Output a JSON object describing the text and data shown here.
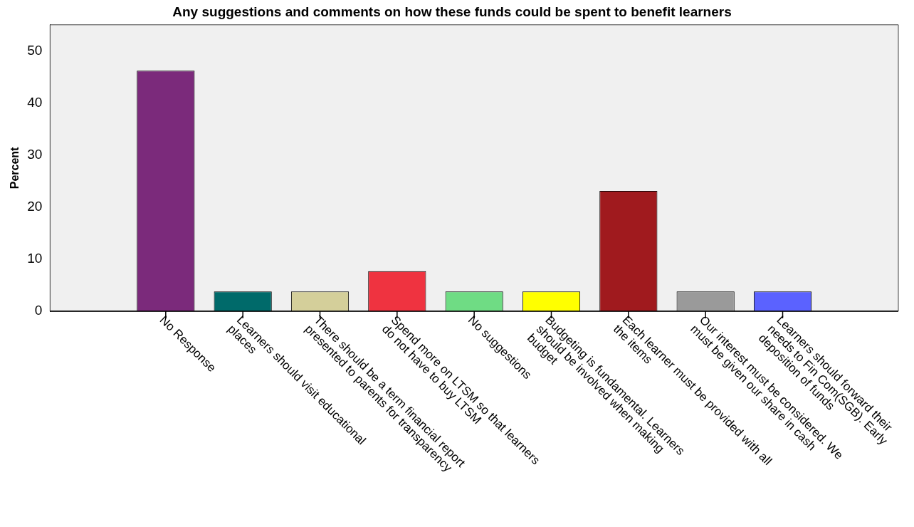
{
  "chart_data": {
    "type": "bar",
    "title": "Any suggestions and comments on how these funds could be spent to benefit learners",
    "ylabel": "Percent",
    "categories": [
      "No Response",
      "Learners should visit educational places",
      "There should be a term financial report presented to parents for transparency",
      "Spend more on LTSM so that learners do not have to buy LTSM",
      "No suggestions",
      "Budgeting is fundamental. Learners should be involved when making budget",
      "Each learner must be provided with all the items",
      "Our interest must be considered. We must be given our share in cash",
      "Learners should forward their needs to Fin Com(SGB). Early deposition of funds"
    ],
    "values": [
      46.2,
      3.8,
      3.8,
      7.7,
      3.8,
      3.8,
      23.1,
      3.8,
      3.8
    ],
    "colors": [
      "#7b2a7b",
      "#006a6a",
      "#d4cf9a",
      "#ef3340",
      "#6fdc84",
      "#ffff00",
      "#a01a1e",
      "#9a9a9a",
      "#5b62ff"
    ],
    "ylim": [
      0,
      55
    ],
    "yticks": [
      0,
      10,
      20,
      30,
      40,
      50
    ],
    "grid": false,
    "legend": false
  }
}
